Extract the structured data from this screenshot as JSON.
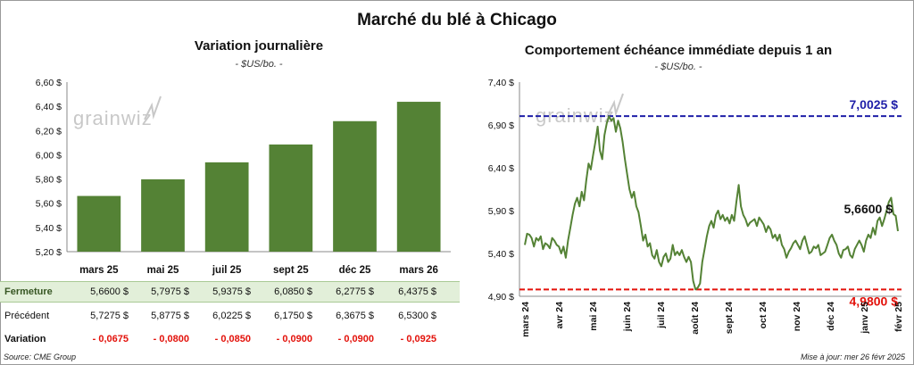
{
  "title": "Marché du blé à Chicago",
  "charts": {
    "left": {
      "title": "Variation journalière",
      "subtitle": "- $US/bo. -"
    },
    "right": {
      "title": "Comportement échéance immédiate depuis 1 an",
      "subtitle": "- $US/bo. -"
    }
  },
  "watermark": "grainwiz",
  "table": {
    "rows": [
      {
        "label": "Fermeture",
        "values": [
          "5,6600  $",
          "5,7975  $",
          "5,9375  $",
          "6,0850  $",
          "6,2775  $",
          "6,4375  $"
        ]
      },
      {
        "label": "Précédent",
        "values": [
          "5,7275  $",
          "5,8775  $",
          "6,0225  $",
          "6,1750  $",
          "6,3675  $",
          "6,5300  $"
        ]
      },
      {
        "label": "Variation",
        "values": [
          "- 0,0675",
          "- 0,0800",
          "- 0,0850",
          "- 0,0900",
          "- 0,0900",
          "- 0,0925"
        ]
      }
    ]
  },
  "source": "Source: CME Group",
  "updated": "Mise à jour: mer 26 févr 2025",
  "colors": {
    "bar": "#548235",
    "line": "#548235",
    "high_line": "#1f1fa8",
    "low_line": "#e3120b",
    "negative": "#e3120b",
    "close_row_bg": "#e2efd9"
  },
  "chart_data": [
    {
      "type": "bar",
      "title": "Variation journalière",
      "ylabel": "$US/bo.",
      "categories": [
        "mars 25",
        "mai 25",
        "juil 25",
        "sept 25",
        "déc 25",
        "mars 26"
      ],
      "values": [
        5.66,
        5.7975,
        5.9375,
        6.085,
        6.2775,
        6.4375
      ],
      "ylim": [
        5.2,
        6.6
      ],
      "yticks": [
        "6,60 $",
        "6,40 $",
        "6,20 $",
        "6,00 $",
        "5,80 $",
        "5,60 $",
        "5,40 $",
        "5,20 $"
      ],
      "ytick_values": [
        6.6,
        6.4,
        6.2,
        6.0,
        5.8,
        5.6,
        5.4,
        5.2
      ],
      "grid": false
    },
    {
      "type": "line",
      "title": "Comportement échéance immédiate depuis 1 an",
      "ylabel": "$US/bo.",
      "ylim": [
        4.9,
        7.4
      ],
      "yticks": [
        "7,40 $",
        "6,90 $",
        "6,40 $",
        "5,90 $",
        "5,40 $",
        "4,90 $"
      ],
      "ytick_values": [
        7.4,
        6.9,
        6.4,
        5.9,
        5.4,
        4.9
      ],
      "xticks": [
        "mars 24",
        "avr 24",
        "mai 24",
        "juin 24",
        "juil 24",
        "août 24",
        "sept 24",
        "oct 24",
        "nov 24",
        "déc 24",
        "janv 25",
        "févr 25"
      ],
      "high": {
        "value": 7.0025,
        "label": "7,0025 $"
      },
      "low": {
        "value": 4.98,
        "label": "4,9800 $"
      },
      "last": {
        "value": 5.66,
        "label": "5,6600 $"
      },
      "series": [
        {
          "values": [
            5.5,
            5.63,
            5.62,
            5.58,
            5.48,
            5.58,
            5.55,
            5.6,
            5.45,
            5.52,
            5.5,
            5.46,
            5.58,
            5.55,
            5.5,
            5.48,
            5.4,
            5.48,
            5.35,
            5.55,
            5.7,
            5.85,
            5.98,
            6.05,
            5.95,
            6.12,
            6.02,
            6.25,
            6.45,
            6.38,
            6.55,
            6.7,
            6.88,
            6.6,
            6.5,
            6.78,
            6.92,
            7.0,
            6.95,
            6.98,
            6.82,
            6.95,
            6.86,
            6.7,
            6.5,
            6.32,
            6.15,
            6.05,
            6.12,
            5.95,
            5.88,
            5.72,
            5.55,
            5.62,
            5.48,
            5.52,
            5.38,
            5.34,
            5.44,
            5.3,
            5.25,
            5.36,
            5.4,
            5.3,
            5.34,
            5.5,
            5.38,
            5.42,
            5.38,
            5.44,
            5.36,
            5.3,
            5.36,
            5.3,
            5.08,
            4.98,
            5.0,
            5.05,
            5.3,
            5.45,
            5.6,
            5.72,
            5.78,
            5.7,
            5.85,
            5.9,
            5.8,
            5.85,
            5.78,
            5.82,
            5.75,
            5.85,
            5.78,
            6.0,
            6.2,
            5.95,
            5.85,
            5.8,
            5.72,
            5.76,
            5.78,
            5.8,
            5.72,
            5.82,
            5.78,
            5.74,
            5.65,
            5.72,
            5.68,
            5.58,
            5.62,
            5.55,
            5.62,
            5.5,
            5.45,
            5.35,
            5.42,
            5.46,
            5.52,
            5.55,
            5.5,
            5.45,
            5.55,
            5.6,
            5.5,
            5.4,
            5.42,
            5.48,
            5.46,
            5.5,
            5.38,
            5.4,
            5.42,
            5.5,
            5.58,
            5.62,
            5.55,
            5.5,
            5.4,
            5.35,
            5.44,
            5.45,
            5.48,
            5.38,
            5.35,
            5.45,
            5.5,
            5.55,
            5.5,
            5.42,
            5.55,
            5.62,
            5.58,
            5.7,
            5.62,
            5.78,
            5.82,
            5.72,
            5.8,
            5.9,
            6.0,
            6.05,
            5.86,
            5.84,
            5.66
          ]
        }
      ]
    }
  ]
}
